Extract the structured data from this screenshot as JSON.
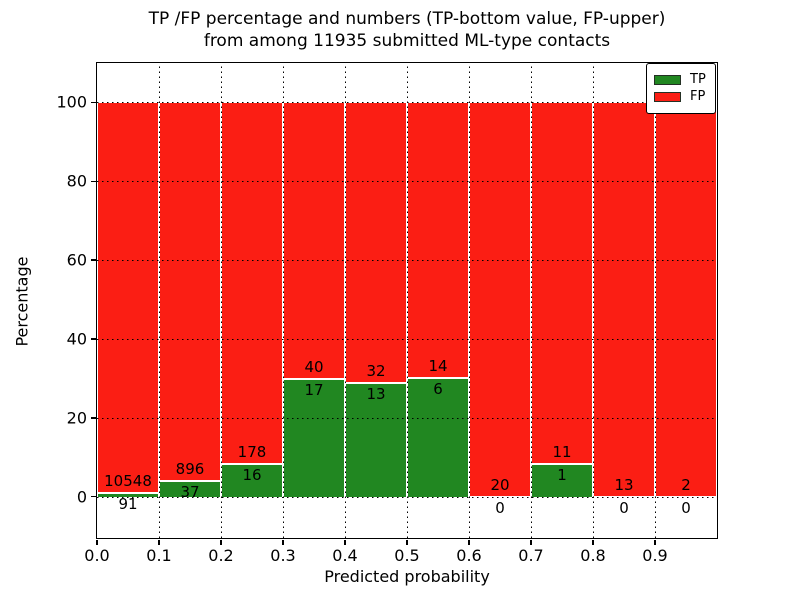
{
  "figure": {
    "title_line1": "TP /FP percentage and numbers (TP-bottom value, FP-upper)",
    "title_line2": "from among 11935 submitted ML-type contacts"
  },
  "chart_data": {
    "type": "bar",
    "stacked": true,
    "normalized": "each bin scaled to 100%",
    "title": "TP /FP percentage and numbers (TP-bottom value, FP-upper) from among 11935 submitted ML-type contacts",
    "total_contacts": 11935,
    "xlabel": "Predicted probability",
    "ylabel": "Percentage",
    "xlim": [
      0.0,
      1.0
    ],
    "ylim": [
      -10.5,
      110
    ],
    "x_ticks": [
      "0.0",
      "0.1",
      "0.2",
      "0.3",
      "0.4",
      "0.5",
      "0.6",
      "0.7",
      "0.8",
      "0.9"
    ],
    "y_ticks": [
      "0",
      "20",
      "40",
      "60",
      "80",
      "100"
    ],
    "y_tick_values": [
      0,
      20,
      40,
      60,
      80,
      100
    ],
    "grid": "dotted, drawn over bars",
    "legend_position": "upper right",
    "bins": [
      {
        "range": "0.0-0.1",
        "tp": 91,
        "fp": 10548,
        "tp_pct": 0.86
      },
      {
        "range": "0.1-0.2",
        "tp": 37,
        "fp": 896,
        "tp_pct": 3.97
      },
      {
        "range": "0.2-0.3",
        "tp": 16,
        "fp": 178,
        "tp_pct": 8.25
      },
      {
        "range": "0.3-0.4",
        "tp": 17,
        "fp": 40,
        "tp_pct": 29.82
      },
      {
        "range": "0.4-0.5",
        "tp": 13,
        "fp": 32,
        "tp_pct": 28.89
      },
      {
        "range": "0.5-0.6",
        "tp": 6,
        "fp": 14,
        "tp_pct": 30.0
      },
      {
        "range": "0.6-0.7",
        "tp": 0,
        "fp": 20,
        "tp_pct": 0.0
      },
      {
        "range": "0.7-0.8",
        "tp": 1,
        "fp": 11,
        "tp_pct": 8.33
      },
      {
        "range": "0.8-0.9",
        "tp": 0,
        "fp": 13,
        "tp_pct": 0.0
      },
      {
        "range": "0.9-1.0",
        "tp": 0,
        "fp": 2,
        "tp_pct": 0.0
      }
    ],
    "legend": [
      {
        "label": "TP",
        "color": "#218721"
      },
      {
        "label": "FP",
        "color": "#fb1e14"
      }
    ],
    "colors": {
      "tp": "#218721",
      "fp": "#fb1e14",
      "bar_edge": "#ffffff",
      "grid": "#000000",
      "text": "#000000",
      "background": "#ffffff"
    }
  }
}
